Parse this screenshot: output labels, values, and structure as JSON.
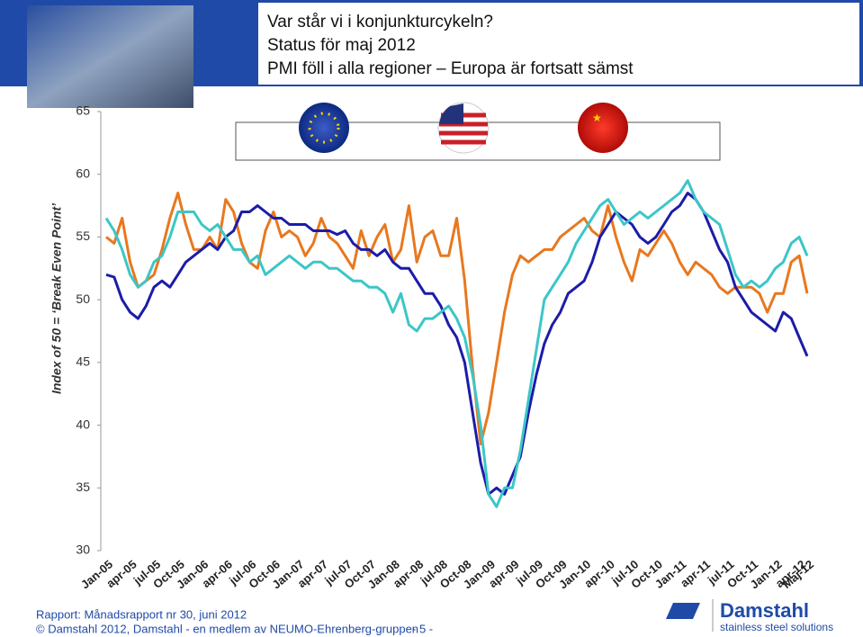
{
  "header": {
    "title_lines": [
      "Var står vi i konjunkturcykeln?",
      "Status för maj 2012",
      "PMI föll i alla regioner – Europa är fortsatt sämst"
    ]
  },
  "chart_data": {
    "type": "line",
    "ylabel": "Index of 50 = ‘Break Even Point’",
    "categories": [
      "Jan-05",
      null,
      null,
      "apr-05",
      null,
      null,
      "jul-05",
      null,
      null,
      "Oct-05",
      null,
      null,
      "Jan-06",
      null,
      null,
      "apr-06",
      null,
      null,
      "jul-06",
      null,
      null,
      "Oct-06",
      null,
      null,
      "Jan-07",
      null,
      null,
      "apr-07",
      null,
      null,
      "jul-07",
      null,
      null,
      "Oct-07",
      null,
      null,
      "Jan-08",
      null,
      null,
      "apr-08",
      null,
      null,
      "jul-08",
      null,
      null,
      "Oct-08",
      null,
      null,
      "Jan-09",
      null,
      null,
      "apr-09",
      null,
      null,
      "jul-09",
      null,
      null,
      "Oct-09",
      null,
      null,
      "Jan-10",
      null,
      null,
      "apr-10",
      null,
      null,
      "jul-10",
      null,
      null,
      "Oct-10",
      null,
      null,
      "Jan-11",
      null,
      null,
      "apr-11",
      null,
      null,
      "jul-11",
      null,
      null,
      "Oct-11",
      null,
      null,
      "Jan-12",
      null,
      null,
      "apr-12",
      "Maj-12"
    ],
    "series": [
      {
        "color": "#e8781e",
        "values": [
          55,
          54.5,
          56.5,
          53,
          51,
          51.5,
          52,
          54,
          56.5,
          58.5,
          56,
          54,
          54,
          55,
          54,
          58,
          57,
          54.5,
          53,
          52.5,
          55.5,
          57,
          55,
          55.5,
          55,
          53.5,
          54.5,
          56.5,
          55,
          54.5,
          53.5,
          52.5,
          55.5,
          53.5,
          55,
          56,
          53,
          54,
          57.5,
          53,
          55,
          55.5,
          53.5,
          53.5,
          56.5,
          51.5,
          44.5,
          38.5,
          41,
          45,
          49,
          52,
          53.5,
          53,
          53.5,
          54,
          54,
          55,
          55.5,
          56,
          56.5,
          55.5,
          55,
          57.5,
          55,
          53,
          51.5,
          54,
          53.5,
          54.5,
          55.5,
          54.5,
          53,
          52,
          53,
          52.5,
          52,
          51,
          50.5,
          51,
          51,
          51,
          50.5,
          49,
          50.5,
          50.5,
          53,
          53.5,
          50.5
        ]
      },
      {
        "color": "#1c1ca8",
        "values": [
          52,
          51.8,
          50,
          49,
          48.5,
          49.5,
          51,
          51.5,
          51,
          52,
          53,
          53.5,
          54,
          54.5,
          54,
          55,
          55.5,
          57,
          57,
          57.5,
          57,
          56.5,
          56.5,
          56,
          56,
          56,
          55.5,
          55.5,
          55.5,
          55.2,
          55.5,
          54.5,
          54,
          54,
          53.5,
          54,
          53,
          52.5,
          52.5,
          51.5,
          50.5,
          50.5,
          49.5,
          48,
          47,
          45,
          41,
          37,
          34.5,
          35,
          34.5,
          36,
          37.5,
          41,
          44,
          46.5,
          48,
          49,
          50.5,
          51,
          51.5,
          53,
          55,
          56,
          57,
          56.5,
          56,
          55,
          54.5,
          55,
          56,
          57,
          57.5,
          58.5,
          58,
          57,
          55.5,
          54,
          53,
          51,
          50,
          49,
          48.5,
          48,
          47.5,
          49,
          48.5,
          47,
          45.5
        ]
      },
      {
        "color": "#3cc6c8",
        "values": [
          56.5,
          55.5,
          54,
          52,
          51,
          51.5,
          53,
          53.5,
          55,
          57,
          57,
          57,
          56,
          55.5,
          56,
          55,
          54,
          54,
          53,
          53.5,
          52,
          52.5,
          53,
          53.5,
          53,
          52.5,
          53,
          53,
          52.5,
          52.5,
          52,
          51.5,
          51.5,
          51,
          51,
          50.5,
          49,
          50.5,
          48,
          47.5,
          48.5,
          48.5,
          49,
          49.5,
          48.5,
          47,
          44,
          40,
          34.5,
          33.5,
          35,
          35,
          38,
          42,
          46,
          50,
          51,
          52,
          53,
          54.5,
          55.5,
          56.5,
          57.5,
          58,
          57,
          56,
          56.5,
          57,
          56.5,
          57,
          57.5,
          58,
          58.5,
          59.5,
          58,
          57,
          56.5,
          56,
          54,
          52,
          51,
          51.5,
          51,
          51.5,
          52.5,
          53,
          54.5,
          55,
          53.5
        ]
      }
    ],
    "ylim": [
      30,
      65
    ],
    "yticks": [
      30,
      35,
      40,
      45,
      50,
      55,
      60,
      65
    ]
  },
  "footer": {
    "report": "Rapport: Månadsrapport nr 30, juni 2012",
    "copyright": "© Damstahl 2012, Damstahl - en medlem av NEUMO-Ehrenberg-gruppen",
    "page": "- 5 -",
    "brand": "Damstahl",
    "tagline": "stainless steel solutions"
  }
}
